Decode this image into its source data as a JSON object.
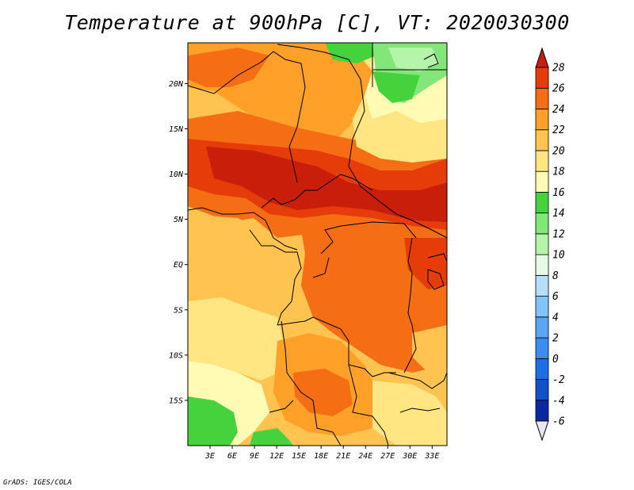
{
  "title": "Temperature at 900hPa [C], VT: 2020030300",
  "credit": "GrADS: IGES/COLA",
  "map": {
    "lat_range": [
      -20,
      24.5
    ],
    "lon_range": [
      0,
      35
    ],
    "lat_ticks": [
      {
        "value": 20,
        "label": "20N"
      },
      {
        "value": 15,
        "label": "15N"
      },
      {
        "value": 10,
        "label": "10N"
      },
      {
        "value": 5,
        "label": "5N"
      },
      {
        "value": 0,
        "label": "EQ"
      },
      {
        "value": -5,
        "label": "5S"
      },
      {
        "value": -10,
        "label": "10S"
      },
      {
        "value": -15,
        "label": "15S"
      }
    ],
    "lon_ticks": [
      {
        "value": 3,
        "label": "3E"
      },
      {
        "value": 6,
        "label": "6E"
      },
      {
        "value": 9,
        "label": "9E"
      },
      {
        "value": 12,
        "label": "12E"
      },
      {
        "value": 15,
        "label": "15E"
      },
      {
        "value": 18,
        "label": "18E"
      },
      {
        "value": 21,
        "label": "21E"
      },
      {
        "value": 24,
        "label": "24E"
      },
      {
        "value": 27,
        "label": "27E"
      },
      {
        "value": 30,
        "label": "30E"
      },
      {
        "value": 33,
        "label": "33E"
      }
    ]
  },
  "colorbar": {
    "levels": [
      "-6",
      "-4",
      "-2",
      "0",
      "2",
      "4",
      "6",
      "8",
      "10",
      "12",
      "14",
      "16",
      "18",
      "20",
      "22",
      "24",
      "26",
      "28"
    ],
    "colors": [
      "#0a0a6e",
      "#0a28a0",
      "#1450c8",
      "#1e6ee6",
      "#3c8cf0",
      "#5aa5f5",
      "#82c3fa",
      "#b4defa",
      "#e6fae6",
      "#b4f5aa",
      "#82e678",
      "#46d23c",
      "#fffab4",
      "#ffe682",
      "#ffc350",
      "#ffa028",
      "#f56e14",
      "#e63c0a",
      "#c81e0a"
    ],
    "under_color": "#e6e6fa",
    "over_color": "#c81e0a"
  }
}
